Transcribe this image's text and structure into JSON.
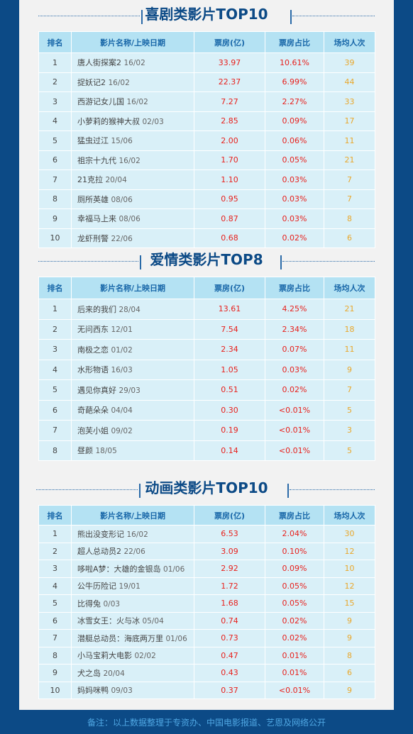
{
  "columns": [
    "排名",
    "影片名称/上映日期",
    "票房(亿)",
    "票房占比",
    "场均人次"
  ],
  "sections": [
    {
      "title": "喜剧类影片TOP10",
      "rows": [
        {
          "rank": "1",
          "name": "唐人街探案2",
          "date": "16/02",
          "box": "33.97",
          "share": "10.61%",
          "avg": "39"
        },
        {
          "rank": "2",
          "name": "捉妖记2",
          "date": "16/02",
          "box": "22.37",
          "share": "6.99%",
          "avg": "44"
        },
        {
          "rank": "3",
          "name": "西游记女儿国",
          "date": "16/02",
          "box": "7.27",
          "share": "2.27%",
          "avg": "33"
        },
        {
          "rank": "4",
          "name": "小萝莉的猴神大叔",
          "date": "02/03",
          "box": "2.85",
          "share": "0.09%",
          "avg": "17"
        },
        {
          "rank": "5",
          "name": "猛虫过江",
          "date": "15/06",
          "box": "2.00",
          "share": "0.06%",
          "avg": "11"
        },
        {
          "rank": "6",
          "name": "祖宗十九代",
          "date": "16/02",
          "box": "1.70",
          "share": "0.05%",
          "avg": "21"
        },
        {
          "rank": "7",
          "name": "21克拉",
          "date": "20/04",
          "box": "1.10",
          "share": "0.03%",
          "avg": "7"
        },
        {
          "rank": "8",
          "name": "厕所英雄",
          "date": "08/06",
          "box": "0.95",
          "share": "0.03%",
          "avg": "7"
        },
        {
          "rank": "9",
          "name": "幸福马上来",
          "date": "08/06",
          "box": "0.87",
          "share": "0.03%",
          "avg": "8"
        },
        {
          "rank": "10",
          "name": "龙虾刑警",
          "date": "22/06",
          "box": "0.68",
          "share": "0.02%",
          "avg": "6"
        }
      ]
    },
    {
      "title": "爱情类影片TOP8",
      "rows": [
        {
          "rank": "1",
          "name": "后来的我们",
          "date": "28/04",
          "box": "13.61",
          "share": "4.25%",
          "avg": "21"
        },
        {
          "rank": "2",
          "name": "无问西东",
          "date": "12/01",
          "box": "7.54",
          "share": "2.34%",
          "avg": "18"
        },
        {
          "rank": "3",
          "name": "南极之恋",
          "date": "01/02",
          "box": "2.34",
          "share": "0.07%",
          "avg": "11"
        },
        {
          "rank": "4",
          "name": "水形物语",
          "date": "16/03",
          "box": "1.05",
          "share": "0.03%",
          "avg": "9"
        },
        {
          "rank": "5",
          "name": "遇见你真好",
          "date": "29/03",
          "box": "0.51",
          "share": "0.02%",
          "avg": "7"
        },
        {
          "rank": "6",
          "name": "奇葩朵朵",
          "date": "04/04",
          "box": "0.30",
          "share": "<0.01%",
          "avg": "5"
        },
        {
          "rank": "7",
          "name": "泡芙小姐",
          "date": "09/02",
          "box": "0.19",
          "share": "<0.01%",
          "avg": "3"
        },
        {
          "rank": "8",
          "name": "昼颜",
          "date": "18/05",
          "box": "0.14",
          "share": "<0.01%",
          "avg": "5"
        }
      ]
    },
    {
      "title": "动画类影片TOP10",
      "rows": [
        {
          "rank": "1",
          "name": "熊出没变形记",
          "date": "16/02",
          "box": "6.53",
          "share": "2.04%",
          "avg": "30"
        },
        {
          "rank": "2",
          "name": "超人总动员2",
          "date": "22/06",
          "box": "3.09",
          "share": "0.10%",
          "avg": "12"
        },
        {
          "rank": "3",
          "name": "哆啦A梦：大雄的金银岛",
          "date": "01/06",
          "box": "2.92",
          "share": "0.09%",
          "avg": "10"
        },
        {
          "rank": "4",
          "name": "公牛历险记",
          "date": "19/01",
          "box": "1.72",
          "share": "0.05%",
          "avg": "12"
        },
        {
          "rank": "5",
          "name": "比得兔",
          "date": "0/03",
          "box": "1.68",
          "share": "0.05%",
          "avg": "15"
        },
        {
          "rank": "6",
          "name": "冰雪女王：火与冰",
          "date": "05/04",
          "box": "0.74",
          "share": "0.02%",
          "avg": "9"
        },
        {
          "rank": "7",
          "name": "潜艇总动员：海底两万里",
          "date": "01/06",
          "box": "0.73",
          "share": "0.02%",
          "avg": "9"
        },
        {
          "rank": "8",
          "name": "小马宝莉大电影",
          "date": "02/02",
          "box": "0.47",
          "share": "0.01%",
          "avg": "8"
        },
        {
          "rank": "9",
          "name": "犬之岛",
          "date": "20/04",
          "box": "0.43",
          "share": "0.01%",
          "avg": "6"
        },
        {
          "rank": "10",
          "name": "妈妈咪鸭",
          "date": "09/03",
          "box": "0.37",
          "share": "<0.01%",
          "avg": "9"
        }
      ]
    }
  ],
  "footnote": "备注：以上数据整理于专资办、中国电影报道、艺恩及网络公开"
}
